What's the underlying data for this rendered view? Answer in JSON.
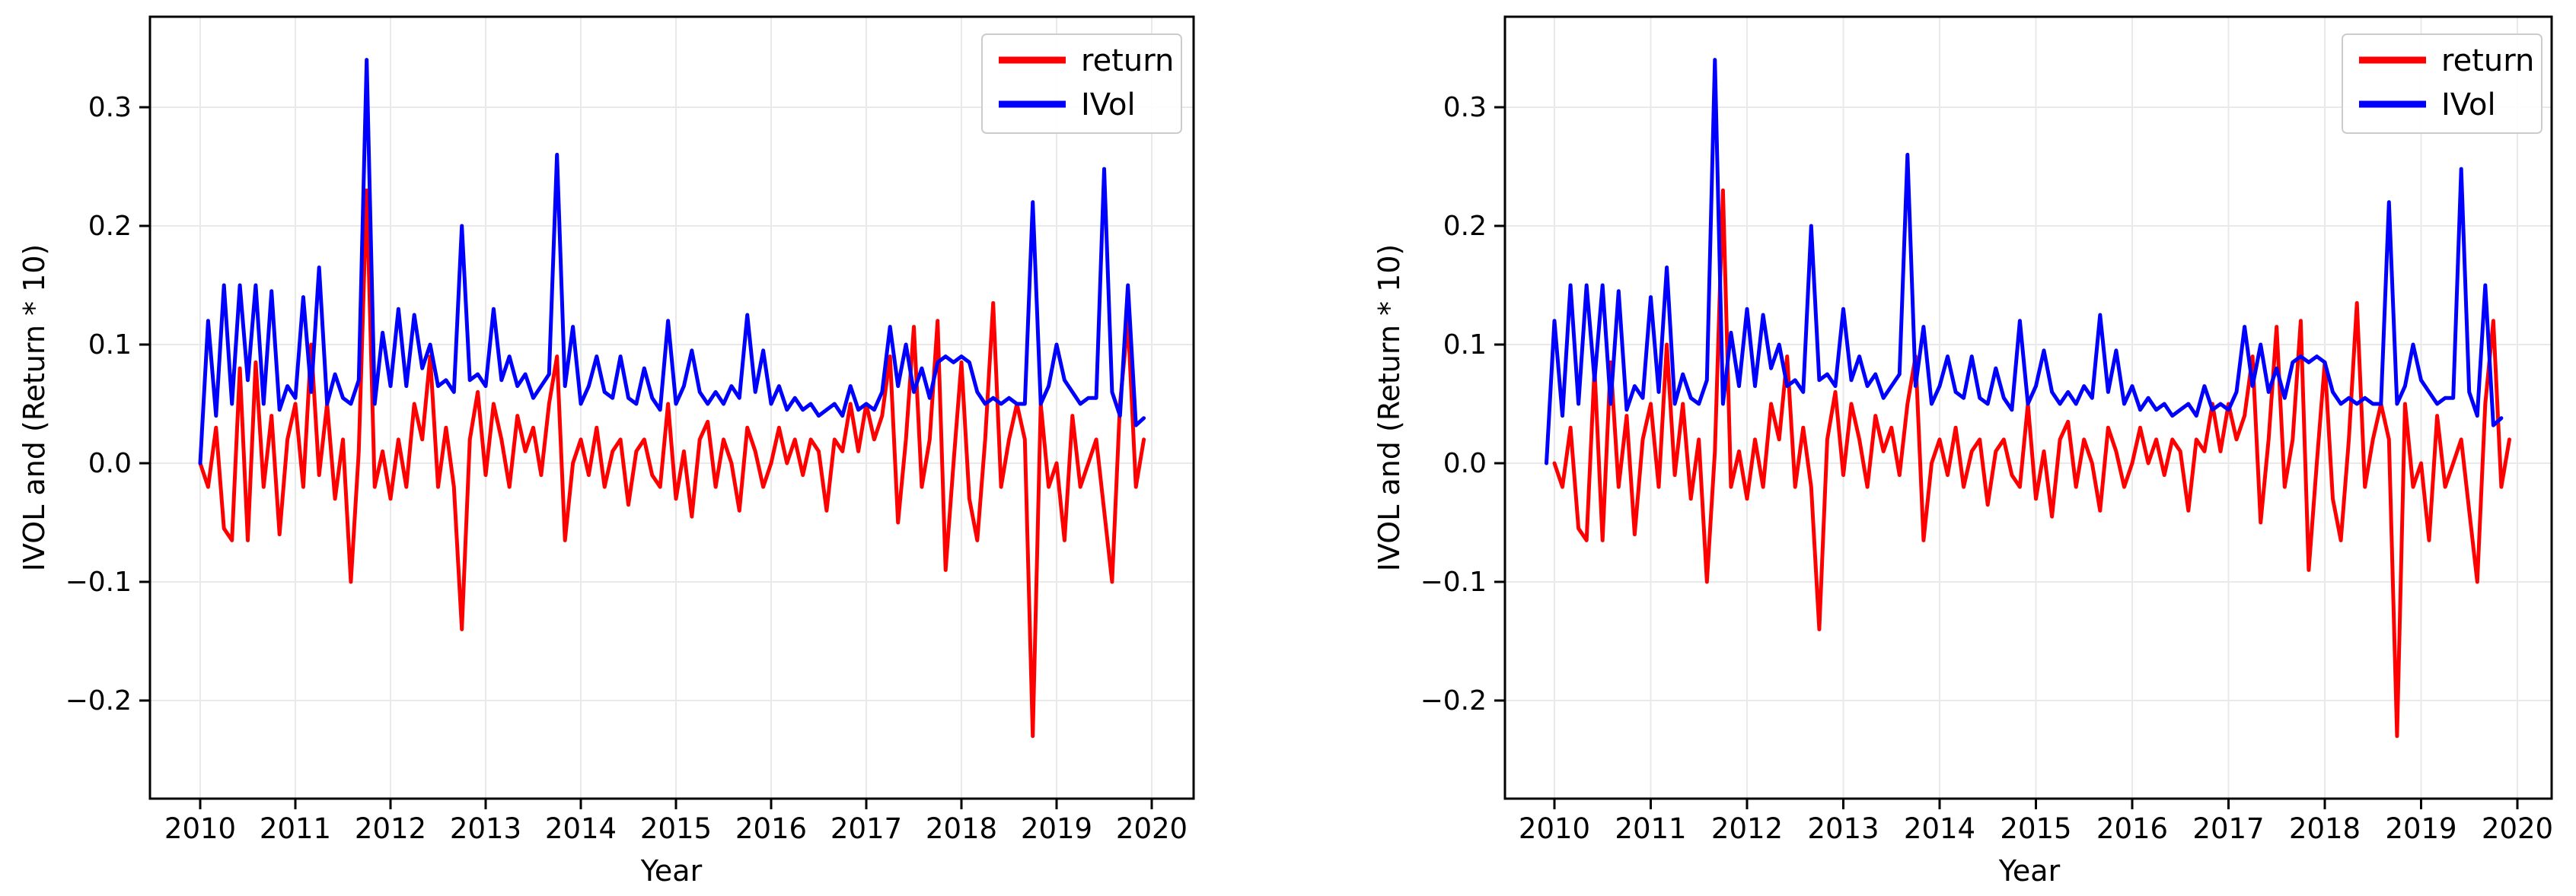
{
  "figure": {
    "background": "#ffffff",
    "accent_colors": {
      "return_line": "#ff0000",
      "ivol_line": "#0000ff"
    }
  },
  "chart_data": {
    "type": "line",
    "x_start_year": 2010.0,
    "x_step_years": 0.0833333,
    "n_points": 120,
    "xlim": [
      2009.5,
      2020.45
    ],
    "ylim": [
      -0.283,
      0.376
    ],
    "grid": true,
    "series": [
      {
        "name": "return",
        "color": "#ff0000",
        "values": [
          0,
          -0.02,
          0.03,
          -0.055,
          -0.065,
          0.08,
          -0.065,
          0.085,
          -0.02,
          0.04,
          -0.06,
          0.02,
          0.05,
          -0.02,
          0.1,
          -0.01,
          0.05,
          -0.03,
          0.02,
          -0.1,
          0.01,
          0.23,
          -0.02,
          0.01,
          -0.03,
          0.02,
          -0.02,
          0.05,
          0.02,
          0.09,
          -0.02,
          0.03,
          -0.02,
          -0.14,
          0.02,
          0.06,
          -0.01,
          0.05,
          0.02,
          -0.02,
          0.04,
          0.01,
          0.03,
          -0.01,
          0.05,
          0.09,
          -0.065,
          0,
          0.02,
          -0.01,
          0.03,
          -0.02,
          0.01,
          0.02,
          -0.035,
          0.01,
          0.02,
          -0.01,
          -0.02,
          0.05,
          -0.03,
          0.01,
          -0.045,
          0.02,
          0.035,
          -0.02,
          0.02,
          0,
          -0.04,
          0.03,
          0.01,
          -0.02,
          0,
          0.03,
          0,
          0.02,
          -0.01,
          0.02,
          0.01,
          -0.04,
          0.02,
          0.01,
          0.05,
          0.01,
          0.05,
          0.02,
          0.04,
          0.09,
          -0.05,
          0.02,
          0.115,
          -0.02,
          0.02,
          0.12,
          -0.09,
          0,
          0.085,
          -0.03,
          -0.065,
          0.02,
          0.135,
          -0.02,
          0.02,
          0.05,
          0.02,
          -0.23,
          0.05,
          -0.02,
          0,
          -0.065,
          0.04,
          -0.02,
          0,
          0.02,
          -0.04,
          -0.1,
          0.05,
          0.12,
          -0.02,
          0.02
        ]
      },
      {
        "name": "IVol",
        "color": "#0000ff",
        "values": [
          0,
          0.12,
          0.04,
          0.15,
          0.05,
          0.15,
          0.07,
          0.15,
          0.05,
          0.145,
          0.045,
          0.065,
          0.055,
          0.14,
          0.06,
          0.165,
          0.05,
          0.075,
          0.055,
          0.05,
          0.07,
          0.34,
          0.05,
          0.11,
          0.065,
          0.13,
          0.065,
          0.125,
          0.08,
          0.1,
          0.065,
          0.07,
          0.06,
          0.2,
          0.07,
          0.075,
          0.065,
          0.13,
          0.07,
          0.09,
          0.065,
          0.075,
          0.055,
          0.065,
          0.075,
          0.26,
          0.065,
          0.115,
          0.05,
          0.065,
          0.09,
          0.06,
          0.055,
          0.09,
          0.055,
          0.05,
          0.08,
          0.055,
          0.045,
          0.12,
          0.05,
          0.065,
          0.095,
          0.06,
          0.05,
          0.06,
          0.05,
          0.065,
          0.055,
          0.125,
          0.06,
          0.095,
          0.05,
          0.065,
          0.045,
          0.055,
          0.045,
          0.05,
          0.04,
          0.045,
          0.05,
          0.04,
          0.065,
          0.045,
          0.05,
          0.045,
          0.06,
          0.115,
          0.065,
          0.1,
          0.06,
          0.08,
          0.055,
          0.085,
          0.09,
          0.085,
          0.09,
          0.085,
          0.06,
          0.05,
          0.055,
          0.05,
          0.055,
          0.05,
          0.05,
          0.22,
          0.05,
          0.065,
          0.1,
          0.07,
          0.06,
          0.05,
          0.055,
          0.055,
          0.248,
          0.06,
          0.04,
          0.15,
          0.032,
          0.038
        ]
      }
    ],
    "charts": [
      {
        "xlabel": "Year",
        "ylabel": "IVOL and (Return * 10)",
        "xticks": [
          2010,
          2011,
          2012,
          2013,
          2014,
          2015,
          2016,
          2017,
          2018,
          2019,
          2020
        ],
        "ytick_values": [
          0.3,
          0.2,
          0.1,
          0.0,
          -0.1,
          -0.2
        ],
        "ytick_labels": [
          "0.3",
          "0.2",
          "0.1",
          "0.0",
          "−0.1",
          "−0.2"
        ],
        "legend": [
          "return",
          "IVol"
        ],
        "legend_position": "upper right",
        "ivol_x_offset_months": 0
      },
      {
        "xlabel": "Year",
        "ylabel": "IVOL and (Return * 10)",
        "xticks": [
          2010,
          2011,
          2012,
          2013,
          2014,
          2015,
          2016,
          2017,
          2018,
          2019,
          2020
        ],
        "ytick_values": [
          0.3,
          0.2,
          0.1,
          0.0,
          -0.1,
          -0.2
        ],
        "ytick_labels": [
          "0.3",
          "0.2",
          "0.1",
          "0.0",
          "−0.1",
          "−0.2"
        ],
        "legend": [
          "return",
          "IVol"
        ],
        "legend_position": "upper right",
        "ivol_x_offset_months": -1
      }
    ]
  }
}
